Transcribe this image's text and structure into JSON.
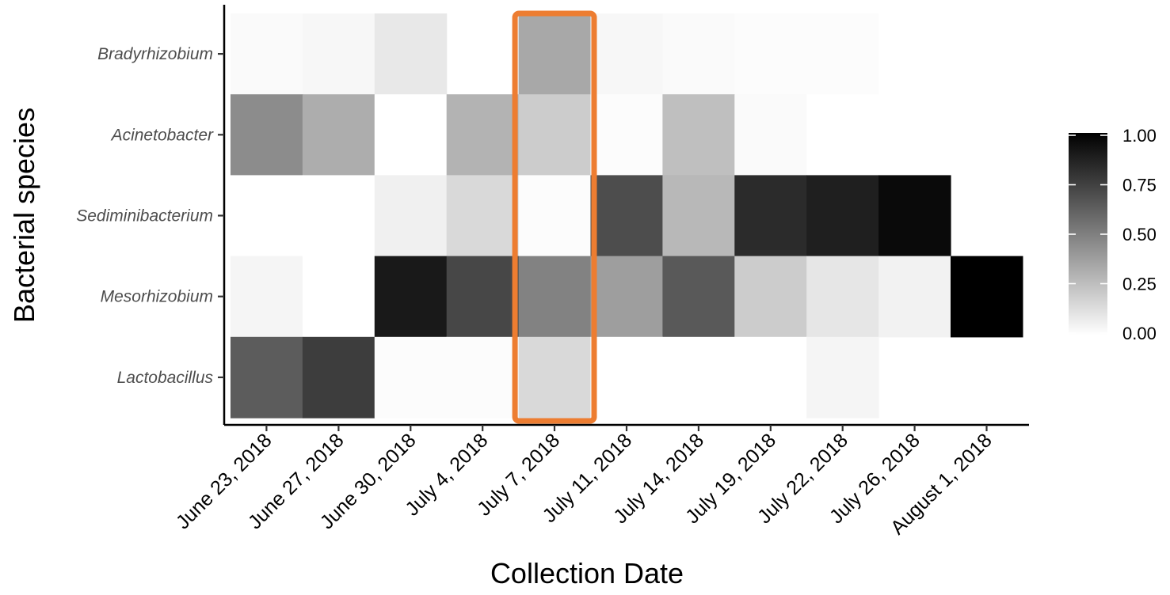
{
  "chart_data": {
    "type": "heatmap",
    "title": "",
    "xlabel": "Collection Date",
    "ylabel": "Bacterial species",
    "x_categories": [
      "June 23, 2018",
      "June 27, 2018",
      "June 30, 2018",
      "July 4, 2018",
      "July 7, 2018",
      "July 11, 2018",
      "July 14, 2018",
      "July 19, 2018",
      "July 22, 2018",
      "July 26, 2018",
      "August 1, 2018"
    ],
    "y_categories": [
      "Bradyrhizobium",
      "Acinetobacter",
      "Sediminibacterium",
      "Mesorhizobium",
      "Lactobacillus"
    ],
    "values": [
      [
        0.02,
        0.03,
        0.09,
        null,
        0.34,
        0.03,
        0.02,
        0.01,
        0.01,
        null,
        null
      ],
      [
        0.45,
        0.32,
        0.0,
        0.3,
        0.2,
        0.01,
        0.25,
        0.02,
        0.0,
        null,
        null
      ],
      [
        0.0,
        0.0,
        0.06,
        0.15,
        0.01,
        0.7,
        0.28,
        0.83,
        0.88,
        0.96,
        null
      ],
      [
        0.04,
        0.0,
        0.9,
        0.72,
        0.49,
        0.38,
        0.65,
        0.2,
        0.1,
        0.05,
        1.0
      ],
      [
        0.64,
        0.76,
        0.01,
        0.01,
        0.15,
        0.0,
        0.0,
        0.0,
        0.04,
        null,
        null
      ]
    ],
    "color_scale": {
      "low": "#ffffff",
      "high": "#000000",
      "range": [
        0,
        1
      ]
    },
    "legend": {
      "position": "right",
      "ticks": [
        "1.00",
        "0.75",
        "0.50",
        "0.25",
        "0.00"
      ]
    },
    "highlight": {
      "x_category": "July 7, 2018",
      "color": "#ed7d31"
    },
    "grid": false
  }
}
